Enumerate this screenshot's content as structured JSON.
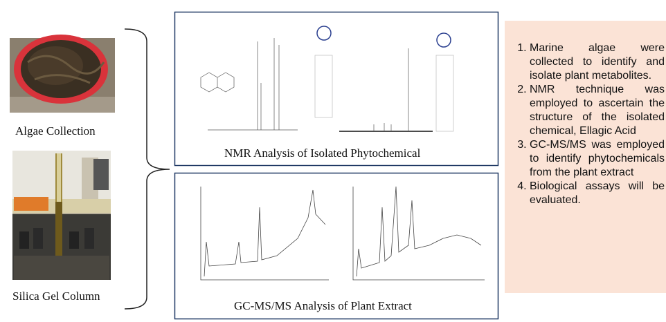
{
  "left_panel": {
    "captions": [
      "Algae Collection",
      "Silica Gel Column"
    ]
  },
  "nmr_panel": {
    "caption": "NMR Analysis of Isolated Phytochemical"
  },
  "gcms_panel": {
    "caption": "GC-MS/MS Analysis of Plant Extract"
  },
  "summary": {
    "items": [
      "Marine algae were collected to identify and isolate plant metabolites.",
      "NMR technique was employed to ascertain the structure of the isolated chemical, Ellagic Acid",
      "GC-MS/MS was employed to identify phytochemicals from the plant extract",
      "Biological assays will be evaluated."
    ]
  }
}
